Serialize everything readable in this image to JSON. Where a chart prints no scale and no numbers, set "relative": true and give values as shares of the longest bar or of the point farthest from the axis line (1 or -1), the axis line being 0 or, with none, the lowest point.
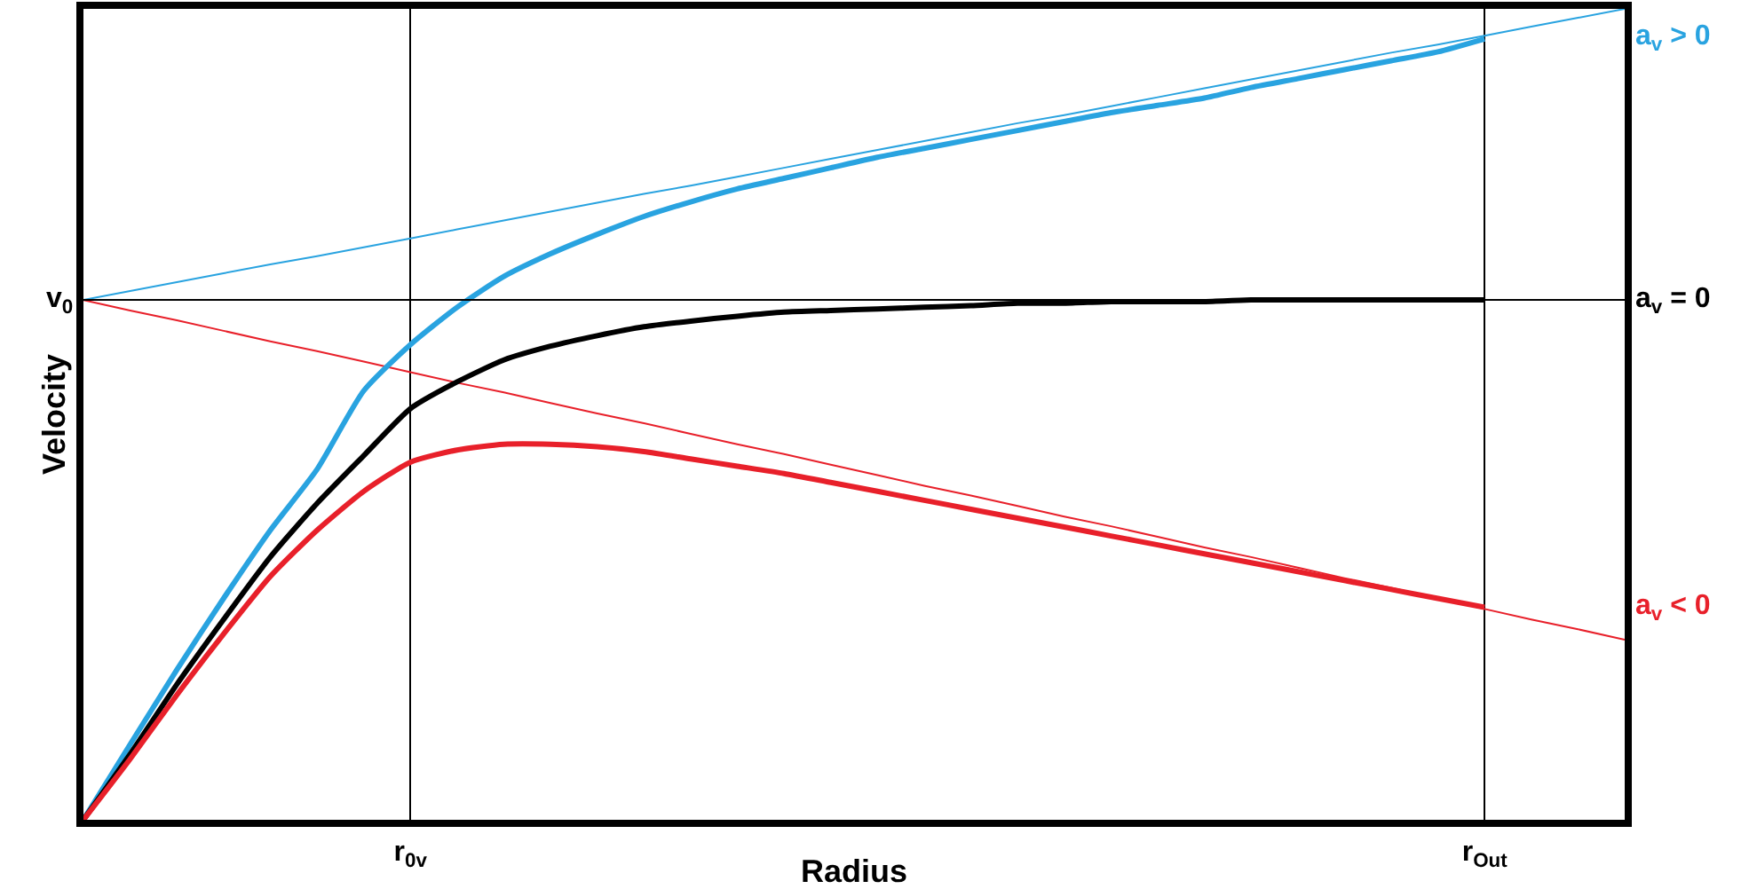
{
  "chart_data": {
    "type": "line",
    "relative": true,
    "xlabel": "Radius",
    "ylabel": "Velocity",
    "grid": "x",
    "legend": false,
    "marker": "none",
    "line_style": "solid",
    "categories": [
      null,
      null,
      null,
      null,
      null,
      null,
      null,
      "r$_{0v}$",
      null,
      null,
      null,
      null,
      null,
      null,
      null,
      null,
      null,
      null,
      null,
      null,
      null,
      null,
      null,
      null,
      null,
      null,
      null,
      null,
      null,
      null,
      "r$_{Out}$",
      null,
      null,
      null
    ],
    "ref_lines": [
      {
        "axis": "y",
        "value": 0.641,
        "label": "v$_{0}$",
        "color": "#000000"
      }
    ],
    "series": [
      {
        "color": "#29a3e0",
        "values": [
          0.641,
          0.652,
          0.663,
          0.674,
          0.685,
          0.695,
          0.706,
          0.717,
          0.728,
          0.739,
          0.75,
          0.761,
          0.772,
          0.782,
          0.793,
          0.804,
          0.815,
          0.826,
          0.837,
          0.848,
          0.859,
          0.869,
          0.88,
          0.891,
          0.902,
          0.913,
          0.924,
          0.935,
          0.946,
          0.956,
          0.967,
          0.978,
          0.989,
          1.0
        ]
      },
      {
        "color": "#e8202a",
        "values": [
          0.641,
          0.628,
          0.616,
          0.603,
          0.59,
          0.578,
          0.565,
          0.552,
          0.539,
          0.527,
          0.514,
          0.501,
          0.489,
          0.476,
          0.463,
          0.451,
          0.438,
          0.425,
          0.412,
          0.4,
          0.387,
          0.374,
          0.362,
          0.349,
          0.336,
          0.324,
          0.311,
          0.298,
          0.286,
          0.273,
          0.26,
          0.247,
          0.235,
          0.222
        ]
      },
      {
        "name": "a$_{v}$ > 0",
        "color": "#29a3e0",
        "values": [
          0,
          0.093,
          0.185,
          0.273,
          0.357,
          0.432,
          0.529,
          0.586,
          0.632,
          0.67,
          0.698,
          0.722,
          0.744,
          0.762,
          0.778,
          0.791,
          0.804,
          0.817,
          0.828,
          0.839,
          0.85,
          0.861,
          0.872,
          0.881,
          0.89,
          0.903,
          0.914,
          0.925,
          0.936,
          0.947,
          0.963,
          null,
          null,
          null
        ]
      },
      {
        "name": "a$_{v}$ = 0",
        "color": "#000000",
        "values": [
          0,
          0.081,
          0.167,
          0.247,
          0.324,
          0.39,
          0.449,
          0.507,
          0.54,
          0.567,
          0.584,
          0.597,
          0.608,
          0.615,
          0.621,
          0.626,
          0.628,
          0.63,
          0.632,
          0.634,
          0.637,
          0.637,
          0.639,
          0.639,
          0.639,
          0.641,
          0.641,
          0.641,
          0.641,
          0.641,
          0.641,
          null,
          null,
          null
        ]
      },
      {
        "name": "a$_{v}$ < 0",
        "color": "#e8202a",
        "values": [
          0,
          0.075,
          0.154,
          0.229,
          0.3,
          0.357,
          0.405,
          0.441,
          0.456,
          0.463,
          0.463,
          0.46,
          0.454,
          0.445,
          0.436,
          0.427,
          0.416,
          0.405,
          0.394,
          0.383,
          0.372,
          0.361,
          0.35,
          0.339,
          0.328,
          0.317,
          0.306,
          0.295,
          0.284,
          0.273,
          0.262,
          null,
          null,
          null
        ]
      }
    ]
  }
}
